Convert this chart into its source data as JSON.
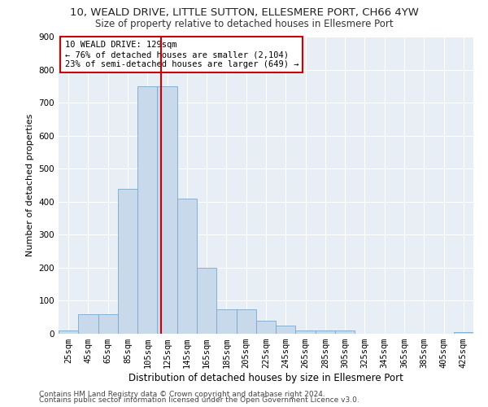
{
  "title1": "10, WEALD DRIVE, LITTLE SUTTON, ELLESMERE PORT, CH66 4YW",
  "title2": "Size of property relative to detached houses in Ellesmere Port",
  "xlabel": "Distribution of detached houses by size in Ellesmere Port",
  "ylabel": "Number of detached properties",
  "footnote1": "Contains HM Land Registry data © Crown copyright and database right 2024.",
  "footnote2": "Contains public sector information licensed under the Open Government Licence v3.0.",
  "bar_color": "#c9d9ec",
  "bar_edge_color": "#7aa8cc",
  "background_color": "#e8eef5",
  "annotation_box_color": "#ffffff",
  "annotation_border_color": "#cc0000",
  "vline_color": "#cc0000",
  "vline_x": 129,
  "annotation_text": "10 WEALD DRIVE: 129sqm\n← 76% of detached houses are smaller (2,104)\n23% of semi-detached houses are larger (649) →",
  "categories": [
    "25sqm",
    "45sqm",
    "65sqm",
    "85sqm",
    "105sqm",
    "125sqm",
    "145sqm",
    "165sqm",
    "185sqm",
    "205sqm",
    "225sqm",
    "245sqm",
    "265sqm",
    "285sqm",
    "305sqm",
    "325sqm",
    "345sqm",
    "365sqm",
    "385sqm",
    "405sqm",
    "425sqm"
  ],
  "bin_edges": [
    25,
    45,
    65,
    85,
    105,
    125,
    145,
    165,
    185,
    205,
    225,
    245,
    265,
    285,
    305,
    325,
    345,
    365,
    385,
    405,
    425,
    445
  ],
  "values": [
    10,
    60,
    60,
    440,
    750,
    750,
    410,
    200,
    75,
    75,
    40,
    25,
    10,
    10,
    10,
    0,
    0,
    0,
    0,
    0,
    5
  ],
  "ylim": [
    0,
    900
  ],
  "yticks": [
    0,
    100,
    200,
    300,
    400,
    500,
    600,
    700,
    800,
    900
  ],
  "title1_fontsize": 9.5,
  "title2_fontsize": 8.5,
  "xlabel_fontsize": 8.5,
  "ylabel_fontsize": 8,
  "tick_fontsize": 7.5,
  "annotation_fontsize": 7.5,
  "footnote_fontsize": 6.5
}
